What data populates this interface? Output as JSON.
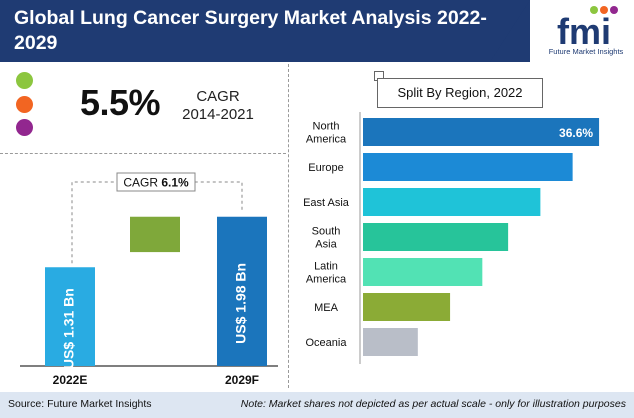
{
  "header": {
    "title": "Global Lung Cancer Surgery Market Analysis 2022-2029",
    "logo_text": "fmi",
    "logo_tagline": "Future Market Insights"
  },
  "cagr_block": {
    "value": "5.5%",
    "label": "CAGR",
    "period": "2014-2021",
    "dot_colors": [
      "#8cc63f",
      "#f26522",
      "#92278f"
    ]
  },
  "chart_data": [
    {
      "type": "bar",
      "categories": [
        "2022E",
        "",
        "2029F"
      ],
      "values": [
        1.31,
        0.67,
        1.98
      ],
      "bar_labels": [
        "US$ 1.31 Bn",
        "",
        "US$ 1.98 Bn"
      ],
      "colors": [
        "#29abe2",
        "#7fa83a",
        "#1b75bc"
      ],
      "annotation": {
        "label": "CAGR",
        "value": "6.1%"
      },
      "ylim": [
        0,
        2.6
      ]
    },
    {
      "type": "bar",
      "orientation": "horizontal",
      "title": "Split By Region, 2022",
      "categories": [
        "North America",
        "Europe",
        "East Asia",
        "South Asia",
        "Latin America",
        "MEA",
        "Oceania"
      ],
      "category_lines": [
        [
          "North",
          "America"
        ],
        [
          "Europe"
        ],
        [
          "East Asia"
        ],
        [
          "South",
          "Asia"
        ],
        [
          "Latin",
          "America"
        ],
        [
          "MEA"
        ],
        [
          "Oceania"
        ]
      ],
      "values": [
        36.6,
        32.5,
        27.5,
        22.5,
        18.5,
        13.5,
        8.5
      ],
      "data_labels": [
        "36.6%",
        "",
        "",
        "",
        "",
        "",
        ""
      ],
      "colors": [
        "#1b75bc",
        "#1c8ad6",
        "#1fc3d8",
        "#27c49a",
        "#52e2b4",
        "#8bab36",
        "#b9bec8"
      ],
      "xlim": [
        0,
        40
      ]
    }
  ],
  "footer": {
    "source": "Source: Future Market Insights",
    "note": "Note: Market shares not depicted as per actual scale - only for illustration purposes"
  }
}
